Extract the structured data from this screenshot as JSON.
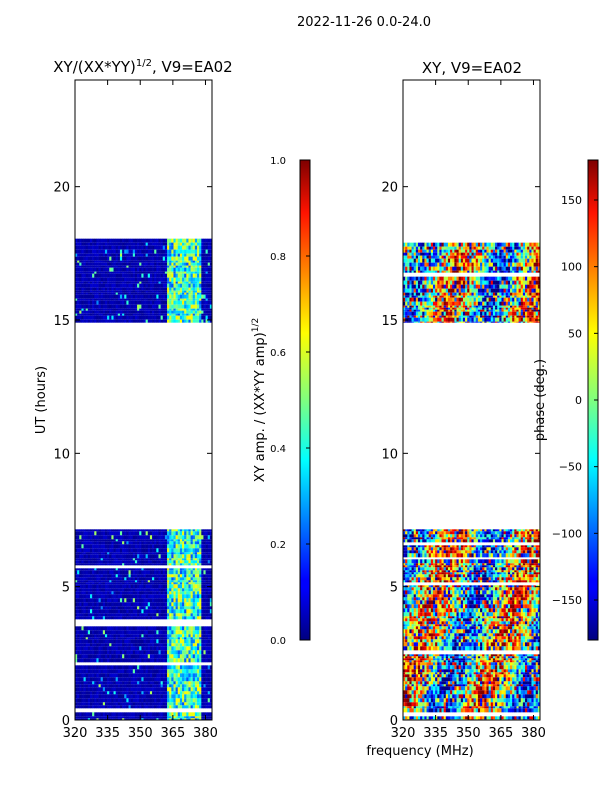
{
  "figure": {
    "title": "2022-11-26 0.0-24.0",
    "xlabel": "frequency (MHz)"
  },
  "chart_data": [
    {
      "type": "heatmap",
      "title_main": "XY/(XX*YY)",
      "title_sup": "1/2",
      "title_tail": ", V9=EA02",
      "ylabel": "UT (hours)",
      "x_ticks": [
        320,
        335,
        350,
        365,
        380
      ],
      "y_ticks": [
        0,
        5,
        10,
        15,
        20
      ],
      "xlim": [
        320,
        383
      ],
      "ylim": [
        0,
        24
      ],
      "colorbar": {
        "label_main": "XY amp. / (XX*YY amp)",
        "label_sup": "1/2",
        "ticks": [
          "0.0",
          "0.2",
          "0.4",
          "0.6",
          "0.8",
          "1.0"
        ],
        "range": [
          0.0,
          1.0
        ]
      },
      "data_blocks": [
        {
          "t_start": 0.0,
          "t_end": 7.15
        },
        {
          "t_start": 14.9,
          "t_end": 18.05
        }
      ],
      "notes": "Mostly low amplitude (~0.05) across band; elevated values (~0.3-0.6) near 362-378 MHz"
    },
    {
      "type": "heatmap",
      "title_main": "XY, V9=EA02",
      "ylabel": "",
      "x_ticks": [
        320,
        335,
        350,
        365,
        380
      ],
      "y_ticks": [
        0,
        5,
        10,
        15,
        20
      ],
      "xlim": [
        320,
        383
      ],
      "ylim": [
        0,
        24
      ],
      "colorbar": {
        "label_main": "phase (deg.)",
        "ticks": [
          "150",
          "100",
          "50",
          "0",
          "−50",
          "−100",
          "−150"
        ],
        "range": [
          -180,
          180
        ]
      },
      "data_blocks": [
        {
          "t_start": 0.0,
          "t_end": 7.15
        },
        {
          "t_start": 14.9,
          "t_end": 18.05
        }
      ],
      "notes": "Phase varies across the full range -180 to 180 deg"
    }
  ]
}
